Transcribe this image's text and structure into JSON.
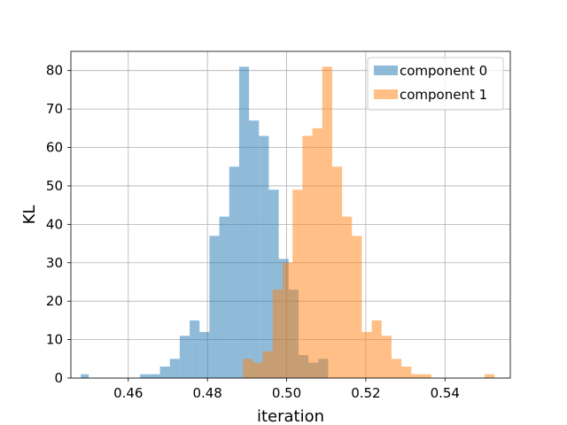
{
  "chart_data": {
    "type": "histogram",
    "title": "",
    "xlabel": "iteration",
    "ylabel": "KL",
    "xlim": [
      0.4455,
      0.5565
    ],
    "ylim": [
      0,
      85
    ],
    "xticks": [
      0.46,
      0.48,
      0.5,
      0.52,
      0.54
    ],
    "xtick_labels": [
      "0.46",
      "0.48",
      "0.50",
      "0.52",
      "0.54"
    ],
    "yticks": [
      0,
      10,
      20,
      30,
      40,
      50,
      60,
      70,
      80
    ],
    "ytick_labels": [
      "0",
      "10",
      "20",
      "30",
      "40",
      "50",
      "60",
      "70",
      "80"
    ],
    "grid": true,
    "legend_position": "top-right",
    "series": [
      {
        "name": "component 0",
        "color": "#1f77b4",
        "opacity": 0.5,
        "bins": [
          {
            "x0": 0.448,
            "x1": 0.45,
            "count": 1
          },
          {
            "x0": 0.463,
            "x1": 0.4655,
            "count": 1
          },
          {
            "x0": 0.4655,
            "x1": 0.468,
            "count": 1
          },
          {
            "x0": 0.468,
            "x1": 0.4705,
            "count": 3
          },
          {
            "x0": 0.4705,
            "x1": 0.473,
            "count": 5
          },
          {
            "x0": 0.473,
            "x1": 0.4755,
            "count": 11
          },
          {
            "x0": 0.4755,
            "x1": 0.478,
            "count": 15
          },
          {
            "x0": 0.478,
            "x1": 0.4805,
            "count": 12
          },
          {
            "x0": 0.4805,
            "x1": 0.483,
            "count": 37
          },
          {
            "x0": 0.483,
            "x1": 0.4855,
            "count": 42
          },
          {
            "x0": 0.4855,
            "x1": 0.488,
            "count": 55
          },
          {
            "x0": 0.488,
            "x1": 0.4905,
            "count": 81
          },
          {
            "x0": 0.4905,
            "x1": 0.493,
            "count": 67
          },
          {
            "x0": 0.493,
            "x1": 0.4955,
            "count": 63
          },
          {
            "x0": 0.4955,
            "x1": 0.498,
            "count": 49
          },
          {
            "x0": 0.498,
            "x1": 0.5005,
            "count": 31
          },
          {
            "x0": 0.5005,
            "x1": 0.503,
            "count": 23
          },
          {
            "x0": 0.503,
            "x1": 0.5055,
            "count": 6
          },
          {
            "x0": 0.5055,
            "x1": 0.508,
            "count": 4
          },
          {
            "x0": 0.508,
            "x1": 0.5105,
            "count": 5
          }
        ]
      },
      {
        "name": "component 1",
        "color": "#ff7f0e",
        "opacity": 0.5,
        "bins": [
          {
            "x0": 0.489,
            "x1": 0.4915,
            "count": 5
          },
          {
            "x0": 0.4915,
            "x1": 0.494,
            "count": 4
          },
          {
            "x0": 0.494,
            "x1": 0.4965,
            "count": 7
          },
          {
            "x0": 0.4965,
            "x1": 0.499,
            "count": 23
          },
          {
            "x0": 0.499,
            "x1": 0.5015,
            "count": 30
          },
          {
            "x0": 0.5015,
            "x1": 0.504,
            "count": 49
          },
          {
            "x0": 0.504,
            "x1": 0.5065,
            "count": 63
          },
          {
            "x0": 0.5065,
            "x1": 0.509,
            "count": 65
          },
          {
            "x0": 0.509,
            "x1": 0.5115,
            "count": 81
          },
          {
            "x0": 0.5115,
            "x1": 0.514,
            "count": 55
          },
          {
            "x0": 0.514,
            "x1": 0.5165,
            "count": 42
          },
          {
            "x0": 0.5165,
            "x1": 0.519,
            "count": 37
          },
          {
            "x0": 0.519,
            "x1": 0.5215,
            "count": 12
          },
          {
            "x0": 0.5215,
            "x1": 0.524,
            "count": 15
          },
          {
            "x0": 0.524,
            "x1": 0.5265,
            "count": 11
          },
          {
            "x0": 0.5265,
            "x1": 0.529,
            "count": 5
          },
          {
            "x0": 0.529,
            "x1": 0.5315,
            "count": 3
          },
          {
            "x0": 0.5315,
            "x1": 0.534,
            "count": 1
          },
          {
            "x0": 0.534,
            "x1": 0.5365,
            "count": 1
          },
          {
            "x0": 0.55,
            "x1": 0.5525,
            "count": 1
          }
        ]
      }
    ]
  }
}
